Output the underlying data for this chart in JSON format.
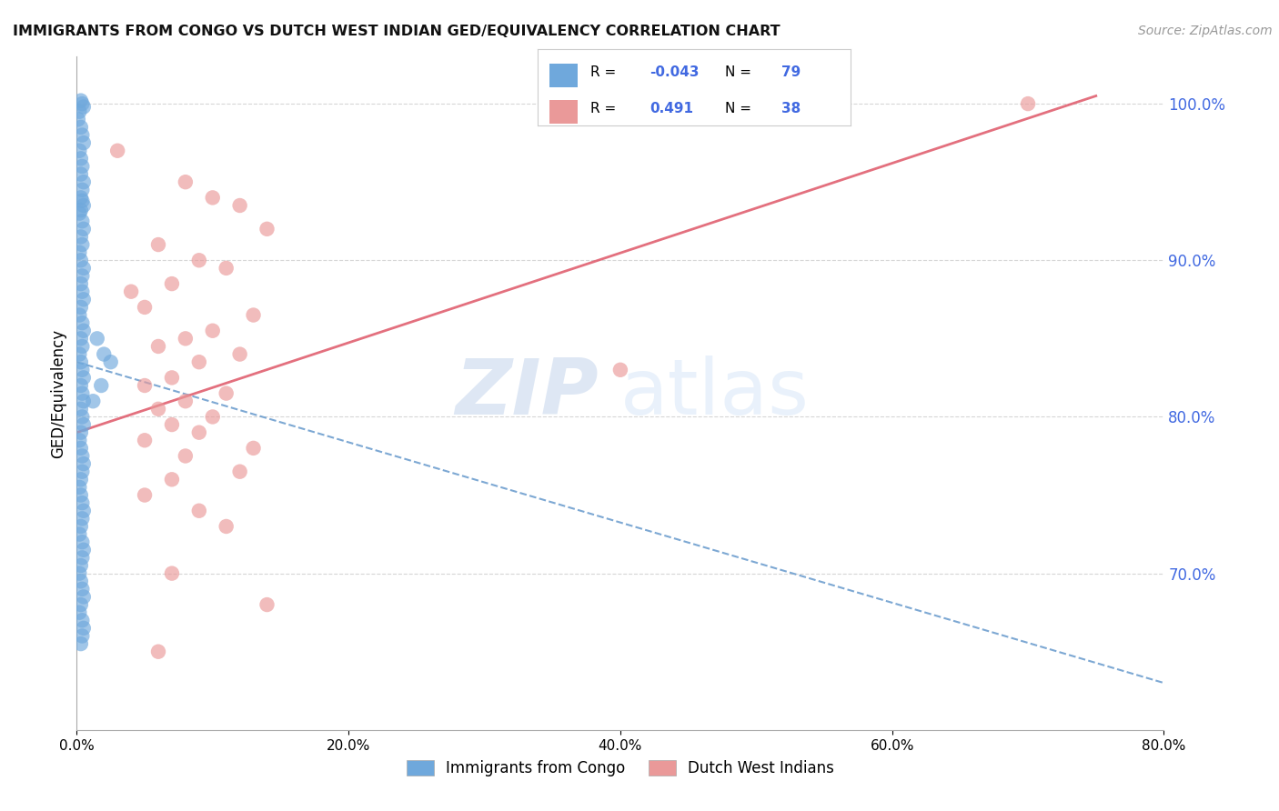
{
  "title": "IMMIGRANTS FROM CONGO VS DUTCH WEST INDIAN GED/EQUIVALENCY CORRELATION CHART",
  "source": "Source: ZipAtlas.com",
  "ylabel": "GED/Equivalency",
  "x_tick_values": [
    0,
    20,
    40,
    60,
    80
  ],
  "x_tick_labels": [
    "0.0%",
    "20.0%",
    "40.0%",
    "60.0%",
    "80.0%"
  ],
  "y_tick_values": [
    70,
    80,
    90,
    100
  ],
  "y_tick_labels": [
    "70.0%",
    "80.0%",
    "90.0%",
    "100.0%"
  ],
  "xlim": [
    0,
    80
  ],
  "ylim": [
    60,
    103
  ],
  "legend_label_1": "Immigrants from Congo",
  "legend_label_2": "Dutch West Indians",
  "R1": -0.043,
  "N1": 79,
  "R2": 0.491,
  "N2": 38,
  "color_blue": "#6fa8dc",
  "color_pink": "#ea9999",
  "color_blue_line": "#6699cc",
  "color_pink_line": "#e06070",
  "color_right_axis": "#4169e1",
  "watermark_zip": "ZIP",
  "watermark_atlas": "atlas",
  "blue_x": [
    0.3,
    0.4,
    0.5,
    0.2,
    0.1,
    0.3,
    0.4,
    0.5,
    0.2,
    0.3,
    0.4,
    0.3,
    0.5,
    0.4,
    0.3,
    0.4,
    0.5,
    0.3,
    0.2,
    0.4,
    0.5,
    0.3,
    0.4,
    0.2,
    0.3,
    0.5,
    0.4,
    0.3,
    0.4,
    0.5,
    0.3,
    0.2,
    0.4,
    0.5,
    0.3,
    0.4,
    0.2,
    0.3,
    0.4,
    0.5,
    0.3,
    0.4,
    0.5,
    0.3,
    0.4,
    0.5,
    0.3,
    0.2,
    0.3,
    0.4,
    0.5,
    0.4,
    0.3,
    0.2,
    0.3,
    0.4,
    0.5,
    0.4,
    0.3,
    0.2,
    0.4,
    0.5,
    0.4,
    0.3,
    0.2,
    0.3,
    0.4,
    0.5,
    0.3,
    0.2,
    0.4,
    0.5,
    0.4,
    0.3,
    1.5,
    2.0,
    2.5,
    1.8,
    1.2
  ],
  "blue_y": [
    100.2,
    100.0,
    99.8,
    99.5,
    99.0,
    98.5,
    98.0,
    97.5,
    97.0,
    96.5,
    96.0,
    95.5,
    95.0,
    94.5,
    94.0,
    93.8,
    93.5,
    93.2,
    93.0,
    92.5,
    92.0,
    91.5,
    91.0,
    90.5,
    90.0,
    89.5,
    89.0,
    88.5,
    88.0,
    87.5,
    87.0,
    86.5,
    86.0,
    85.5,
    85.0,
    84.5,
    84.0,
    83.5,
    83.0,
    82.5,
    82.0,
    81.5,
    81.0,
    80.5,
    80.0,
    79.5,
    79.0,
    78.5,
    78.0,
    77.5,
    77.0,
    76.5,
    76.0,
    75.5,
    75.0,
    74.5,
    74.0,
    73.5,
    73.0,
    72.5,
    72.0,
    71.5,
    71.0,
    70.5,
    70.0,
    69.5,
    69.0,
    68.5,
    68.0,
    67.5,
    67.0,
    66.5,
    66.0,
    65.5,
    85.0,
    84.0,
    83.5,
    82.0,
    81.0
  ],
  "pink_x": [
    3.0,
    8.0,
    10.0,
    12.0,
    14.0,
    6.0,
    9.0,
    11.0,
    7.0,
    4.0,
    5.0,
    13.0,
    10.0,
    8.0,
    6.0,
    12.0,
    9.0,
    7.0,
    5.0,
    11.0,
    8.0,
    6.0,
    10.0,
    7.0,
    9.0,
    5.0,
    13.0,
    8.0,
    12.0,
    7.0,
    40.0,
    5.0,
    9.0,
    11.0,
    7.0,
    14.0,
    70.0,
    6.0
  ],
  "pink_y": [
    97.0,
    95.0,
    94.0,
    93.5,
    92.0,
    91.0,
    90.0,
    89.5,
    88.5,
    88.0,
    87.0,
    86.5,
    85.5,
    85.0,
    84.5,
    84.0,
    83.5,
    82.5,
    82.0,
    81.5,
    81.0,
    80.5,
    80.0,
    79.5,
    79.0,
    78.5,
    78.0,
    77.5,
    76.5,
    76.0,
    83.0,
    75.0,
    74.0,
    73.0,
    70.0,
    68.0,
    100.0,
    65.0
  ],
  "blue_line_x": [
    0,
    80
  ],
  "blue_line_y": [
    83.5,
    63.0
  ],
  "pink_line_x": [
    0,
    75
  ],
  "pink_line_y": [
    79.0,
    100.5
  ]
}
